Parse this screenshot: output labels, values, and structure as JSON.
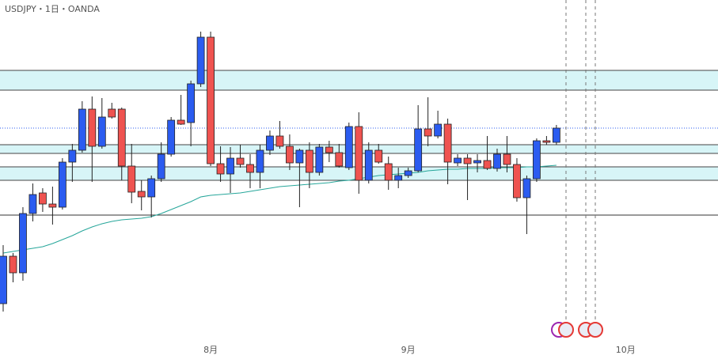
{
  "chart_data": {
    "type": "candlestick",
    "title": "USDJPY・1日・OANDA",
    "categories": [
      null,
      null,
      null,
      null,
      null,
      null,
      null,
      null,
      null,
      null,
      null,
      null,
      null,
      null,
      null,
      null,
      null,
      null,
      null,
      null,
      null,
      "8月",
      null,
      null,
      null,
      null,
      null,
      null,
      null,
      null,
      null,
      null,
      null,
      null,
      null,
      null,
      null,
      null,
      null,
      null,
      null,
      "9月",
      null,
      null,
      null,
      null,
      null,
      null,
      null,
      null,
      null,
      null,
      null,
      null,
      null,
      null,
      null,
      null,
      null,
      null,
      null,
      null,
      null,
      "10月"
    ],
    "open": [
      138.48,
      140.28,
      139.65,
      141.9,
      142.68,
      142.26,
      142.14,
      143.85,
      144.3,
      145.86,
      144.45,
      145.86,
      145.86,
      143.7,
      142.74,
      142.53,
      143.22,
      144.15,
      145.44,
      145.35,
      146.82,
      148.59,
      143.79,
      143.4,
      144.0,
      143.76,
      143.46,
      144.3,
      144.84,
      144.45,
      143.82,
      144.3,
      143.46,
      144.42,
      144.21,
      143.64,
      145.2,
      143.16,
      144.3,
      143.79,
      143.16,
      143.34,
      143.52,
      145.11,
      144.84,
      145.29,
      143.82,
      144.0,
      143.82,
      143.91,
      143.61,
      144.15,
      143.76,
      142.5,
      143.22,
      144.66,
      144.6,
      null,
      null,
      null,
      null,
      null,
      null,
      null
    ],
    "high": [
      140.7,
      140.4,
      142.14,
      143.04,
      142.86,
      142.92,
      144.0,
      144.54,
      146.16,
      146.34,
      146.28,
      146.1,
      145.92,
      144.54,
      143.16,
      143.34,
      144.6,
      145.56,
      146.4,
      146.94,
      148.8,
      148.8,
      144.45,
      144.42,
      144.51,
      144.15,
      144.51,
      145.05,
      145.41,
      144.9,
      144.36,
      144.6,
      144.54,
      144.66,
      144.54,
      145.35,
      145.74,
      144.6,
      144.54,
      144.06,
      143.64,
      143.64,
      146.01,
      146.31,
      145.8,
      145.5,
      144.15,
      144.15,
      144.15,
      144.84,
      144.36,
      144.84,
      144.0,
      143.34,
      144.75,
      144.84,
      145.26,
      null,
      null,
      null,
      null,
      null,
      null,
      null
    ],
    "low": [
      138.18,
      139.29,
      139.35,
      141.6,
      141.96,
      141.48,
      142.05,
      143.1,
      144.21,
      143.1,
      144.36,
      145.5,
      143.16,
      142.29,
      142.02,
      141.75,
      143.1,
      144.06,
      145.26,
      144.45,
      146.7,
      143.7,
      143.1,
      142.68,
      143.64,
      142.86,
      142.86,
      144.12,
      144.36,
      143.55,
      142.14,
      142.86,
      143.34,
      143.85,
      143.64,
      143.55,
      142.65,
      143.04,
      143.79,
      142.8,
      142.86,
      143.25,
      143.46,
      144.45,
      144.75,
      143.01,
      143.7,
      142.41,
      143.46,
      143.55,
      143.49,
      143.46,
      142.35,
      141.12,
      143.1,
      144.51,
      144.51,
      null,
      null,
      null,
      null,
      null,
      null,
      null
    ],
    "close": [
      140.28,
      139.65,
      141.9,
      142.62,
      142.26,
      142.14,
      143.85,
      144.3,
      145.86,
      144.45,
      145.56,
      145.56,
      143.7,
      142.71,
      142.53,
      143.22,
      144.15,
      145.44,
      145.29,
      146.82,
      148.59,
      143.79,
      143.4,
      144.0,
      143.76,
      143.46,
      144.3,
      144.84,
      144.45,
      143.82,
      144.3,
      143.46,
      144.42,
      144.21,
      143.7,
      145.2,
      143.16,
      144.3,
      143.85,
      143.16,
      143.34,
      143.52,
      145.11,
      144.84,
      145.29,
      143.85,
      144.0,
      143.79,
      143.91,
      143.61,
      144.15,
      143.76,
      142.5,
      143.22,
      144.66,
      144.6,
      145.14,
      null,
      null,
      null,
      null,
      null,
      null,
      null
    ],
    "moving_average": [
      140.4,
      140.46,
      140.52,
      140.58,
      140.64,
      140.76,
      140.91,
      141.06,
      141.24,
      141.39,
      141.51,
      141.6,
      141.66,
      141.69,
      141.72,
      141.78,
      141.9,
      142.05,
      142.2,
      142.35,
      142.53,
      142.59,
      142.62,
      142.65,
      142.68,
      142.74,
      142.8,
      142.86,
      142.92,
      142.95,
      142.98,
      143.01,
      143.04,
      143.07,
      143.13,
      143.16,
      143.22,
      143.28,
      143.34,
      143.37,
      143.4,
      143.43,
      143.46,
      143.52,
      143.55,
      143.58,
      143.58,
      143.61,
      143.61,
      143.61,
      143.64,
      143.64,
      143.64,
      143.67,
      143.67,
      143.7,
      143.73,
      null,
      null,
      null,
      null,
      null,
      null,
      null
    ],
    "up_color": "#2b5cf0",
    "down_color": "#ef5350",
    "ma_color": "#26a69a",
    "zones": [
      [
        146.58,
        147.33
      ],
      [
        144.18,
        144.51
      ],
      [
        143.16,
        143.67
      ]
    ],
    "zone_color": "#d7f5f7",
    "level": 141.84,
    "price_line": 145.14,
    "ylim": [
      136.38,
      150
    ]
  }
}
